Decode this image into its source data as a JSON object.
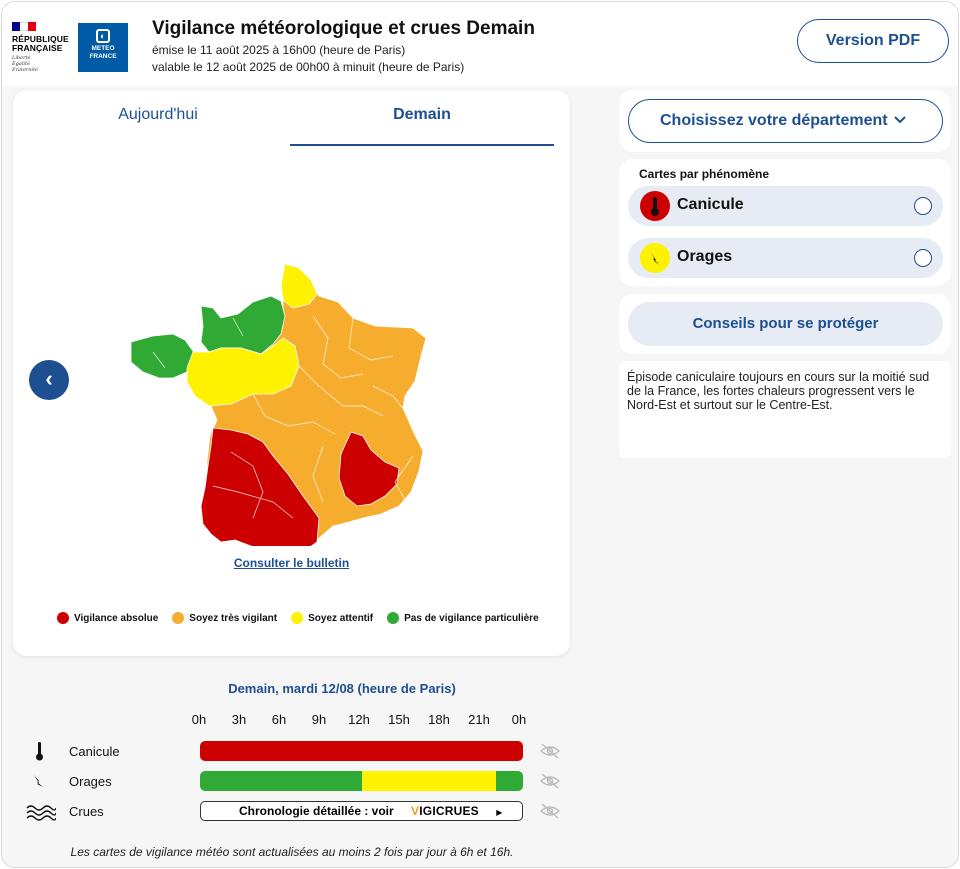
{
  "header": {
    "gov_logo_text": "RÉPUBLIQUE FRANÇAISE",
    "gov_motto": [
      "Liberté",
      "Égalité",
      "Fraternité"
    ],
    "mf_logo_text": "METEO FRANCE",
    "title": "Vigilance météorologique et crues Demain",
    "issued": "émise le 11 août 2025 à 16h00 (heure de Paris)",
    "valid": "valable le 12 août 2025 de 00h00 à minuit (heure de Paris)",
    "pdf_button": "Version PDF"
  },
  "map_card": {
    "tabs": [
      "Aujourd'hui",
      "Demain"
    ],
    "active_tab": "Demain",
    "bulletin_link": "Consulter le bulletin",
    "legend": [
      {
        "label": "Vigilance absolue",
        "color": "#cc0000"
      },
      {
        "label": "Soyez très vigilant",
        "color": "#f6ad2e"
      },
      {
        "label": "Soyez attentif",
        "color": "#fff200"
      },
      {
        "label": "Pas de vigilance particulière",
        "color": "#31aa35"
      }
    ]
  },
  "sidebar": {
    "department_select": "Choisissez votre département",
    "phenomena_heading": "Cartes par phénomène",
    "phenomena": [
      {
        "label": "Canicule",
        "icon": "thermometer-icon",
        "color": "#cc0000"
      },
      {
        "label": "Orages",
        "icon": "lightning-icon",
        "color": "#fff200"
      }
    ],
    "advice_button": "Conseils pour se protéger",
    "comment": "Épisode caniculaire toujours en cours sur la moitié sud de la France, les fortes chaleurs progressent vers le Nord-Est et surtout sur le Centre-Est."
  },
  "timeline": {
    "title": "Demain, mardi 12/08 (heure de Paris)",
    "hours": [
      "0h",
      "3h",
      "6h",
      "9h",
      "12h",
      "15h",
      "18h",
      "21h",
      "0h"
    ],
    "rows": [
      {
        "label": "Canicule",
        "segments": [
          {
            "from_hour": 0,
            "to_hour": 24,
            "level": "red"
          }
        ]
      },
      {
        "label": "Orages",
        "segments": [
          {
            "from_hour": 0,
            "to_hour": 12,
            "level": "green"
          },
          {
            "from_hour": 12,
            "to_hour": 22,
            "level": "yellow"
          },
          {
            "from_hour": 22,
            "to_hour": 24,
            "level": "green"
          }
        ]
      },
      {
        "label": "Crues",
        "link_text": "Chronologie détaillée : voir",
        "brand": "VIGICRUES"
      }
    ],
    "footnote": "Les cartes de vigilance météo sont actualisées au moins 2 fois par jour à 6h et 16h."
  },
  "colors": {
    "red": "#cc0000",
    "orange": "#f6ad2e",
    "yellow": "#fff200",
    "green": "#31aa35",
    "accent": "#1d4f91"
  }
}
